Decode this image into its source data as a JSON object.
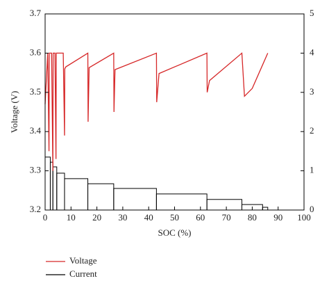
{
  "chart_data": {
    "type": "line_histogram",
    "xlabel": "SOC (%)",
    "ylabel": "Voltage (V)",
    "xlim": [
      0,
      100
    ],
    "xticks": [
      0,
      10,
      20,
      30,
      40,
      50,
      60,
      70,
      80,
      90,
      100
    ],
    "ylim": [
      3.2,
      3.7
    ],
    "yticks": [
      3.2,
      3.3,
      3.4,
      3.5,
      3.6,
      3.7
    ],
    "y2lim": [
      0,
      5
    ],
    "y2ticks": [
      0,
      1,
      2,
      3,
      4,
      5
    ],
    "series": [
      {
        "name": "Voltage",
        "color": "#d62728",
        "x": [
          0,
          1,
          1.5,
          1.6,
          2.5,
          3,
          3.1,
          3.8,
          4.2,
          4.3,
          5,
          7,
          7.5,
          7.6,
          8,
          16.5,
          16.6,
          17,
          26.5,
          26.6,
          27,
          43,
          43.1,
          44,
          62.5,
          62.6,
          63.5,
          76,
          77,
          80,
          84,
          86
        ],
        "values": [
          3.47,
          3.6,
          3.35,
          3.6,
          3.6,
          3.3,
          3.6,
          3.6,
          3.33,
          3.6,
          3.6,
          3.6,
          3.39,
          3.56,
          3.565,
          3.6,
          3.425,
          3.563,
          3.6,
          3.45,
          3.558,
          3.6,
          3.475,
          3.548,
          3.6,
          3.5,
          3.53,
          3.6,
          3.49,
          3.51,
          3.57,
          3.6
        ]
      },
      {
        "name": "Current",
        "color": "#000000",
        "axis": "y2",
        "bins": [
          0,
          2,
          3,
          4.5,
          7.5,
          16.5,
          26.5,
          43,
          62.5,
          76,
          84,
          86
        ],
        "values": [
          1.35,
          1.22,
          1.1,
          0.94,
          0.8,
          0.67,
          0.55,
          0.41,
          0.27,
          0.14,
          0.07
        ]
      }
    ]
  }
}
